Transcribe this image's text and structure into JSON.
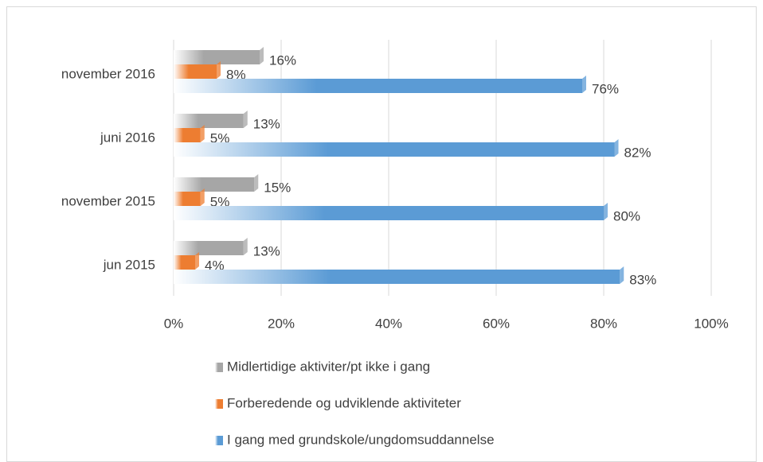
{
  "chart_data": {
    "type": "bar",
    "orientation": "horizontal",
    "categories": [
      "jun 2015",
      "november 2015",
      "juni 2016",
      "november 2016"
    ],
    "series": [
      {
        "name": "Midlertidige aktiviter/pt ikke i gang",
        "color": "#a6a6a6",
        "values": [
          13,
          15,
          13,
          16
        ],
        "value_labels": [
          "13%",
          "15%",
          "13%",
          "16%"
        ]
      },
      {
        "name": "Forberedende og udviklende aktiviteter",
        "color": "#ed7d31",
        "values": [
          4,
          5,
          5,
          8
        ],
        "value_labels": [
          "4%",
          "5%",
          "5%",
          "8%"
        ]
      },
      {
        "name": "I gang med grundskole/ungdomsuddannelse",
        "color": "#5b9bd5",
        "values": [
          83,
          80,
          82,
          76
        ],
        "value_labels": [
          "83%",
          "80%",
          "82%",
          "76%"
        ]
      }
    ],
    "xlim": [
      0,
      100
    ],
    "xticks": [
      {
        "value": 0,
        "label": "0%"
      },
      {
        "value": 20,
        "label": "20%"
      },
      {
        "value": 40,
        "label": "40%"
      },
      {
        "value": 60,
        "label": "60%"
      },
      {
        "value": 80,
        "label": "80%"
      },
      {
        "value": 100,
        "label": "100%"
      }
    ],
    "grid": true,
    "legend": "bottom"
  }
}
